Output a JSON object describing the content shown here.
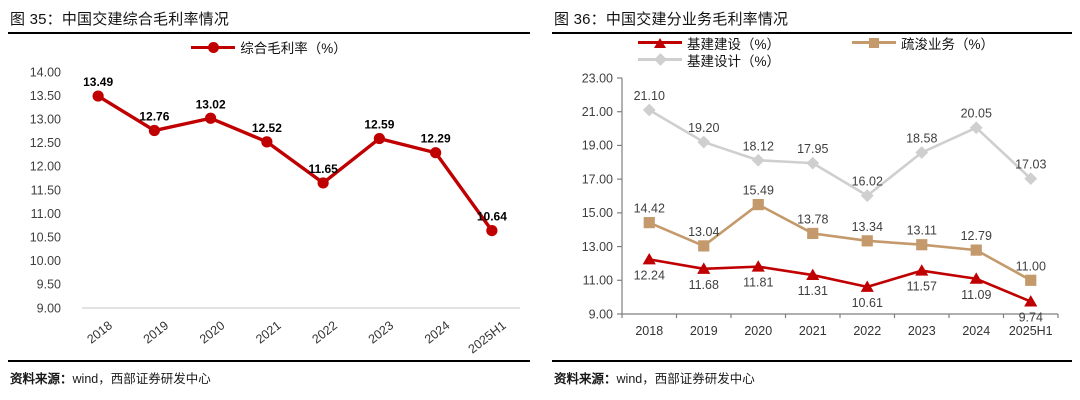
{
  "colors": {
    "series_red": "#C00000",
    "series_tan": "#C49A6C",
    "series_gray": "#CFCFCF",
    "axis_line": "#7F7F7F",
    "baseline_gray": "#D9D9D9",
    "axis_text": "#3F3F3F",
    "rule": "#000000"
  },
  "figures": [
    {
      "label": "图 35：",
      "title": "中国交建综合毛利率情况",
      "source_label": "资料来源：",
      "source": "wind，西部证券研发中心"
    },
    {
      "label": "图 36：",
      "title": "中国交建分业务毛利率情况",
      "source_label": "资料来源：",
      "source": "wind，西部证券研发中心"
    }
  ],
  "chart_data": [
    {
      "type": "line",
      "title": "中国交建综合毛利率情况",
      "categories": [
        "2018",
        "2019",
        "2020",
        "2021",
        "2022",
        "2023",
        "2024",
        "2025H1"
      ],
      "series": [
        {
          "key": "composite-gross-margin",
          "name": "综合毛利率（%）",
          "values": [
            13.49,
            12.76,
            13.02,
            12.52,
            11.65,
            12.59,
            12.29,
            10.64
          ],
          "color": "#C00000",
          "marker": "circle",
          "label_pos": "above"
        }
      ],
      "ylim": [
        9,
        14
      ],
      "ytick_step": 0.5,
      "grid": false,
      "legend_position": "top-center",
      "x_label_rotated": true
    },
    {
      "type": "line",
      "title": "中国交建分业务毛利率情况",
      "categories": [
        "2018",
        "2019",
        "2020",
        "2021",
        "2022",
        "2023",
        "2024",
        "2025H1"
      ],
      "series": [
        {
          "key": "infrastructure-construction",
          "name": "基建建设（%）",
          "values": [
            12.24,
            11.68,
            11.81,
            11.31,
            10.61,
            11.57,
            11.09,
            9.74
          ],
          "color": "#C00000",
          "marker": "triangle",
          "label_pos": "below"
        },
        {
          "key": "dredging-business",
          "name": "疏浚业务（%）",
          "values": [
            14.42,
            13.04,
            15.49,
            13.78,
            13.34,
            13.11,
            12.79,
            11.0
          ],
          "color": "#C49A6C",
          "marker": "square",
          "label_pos": "above"
        },
        {
          "key": "infrastructure-design",
          "name": "基建设计（%）",
          "values": [
            21.1,
            19.2,
            18.12,
            17.95,
            16.02,
            18.58,
            20.05,
            17.03
          ],
          "color": "#CFCFCF",
          "marker": "diamond",
          "label_pos": "above"
        }
      ],
      "ylim": [
        9,
        23
      ],
      "ytick_step": 2,
      "grid": false,
      "legend_position": "top-left-two-rows",
      "x_label_rotated": false
    }
  ]
}
